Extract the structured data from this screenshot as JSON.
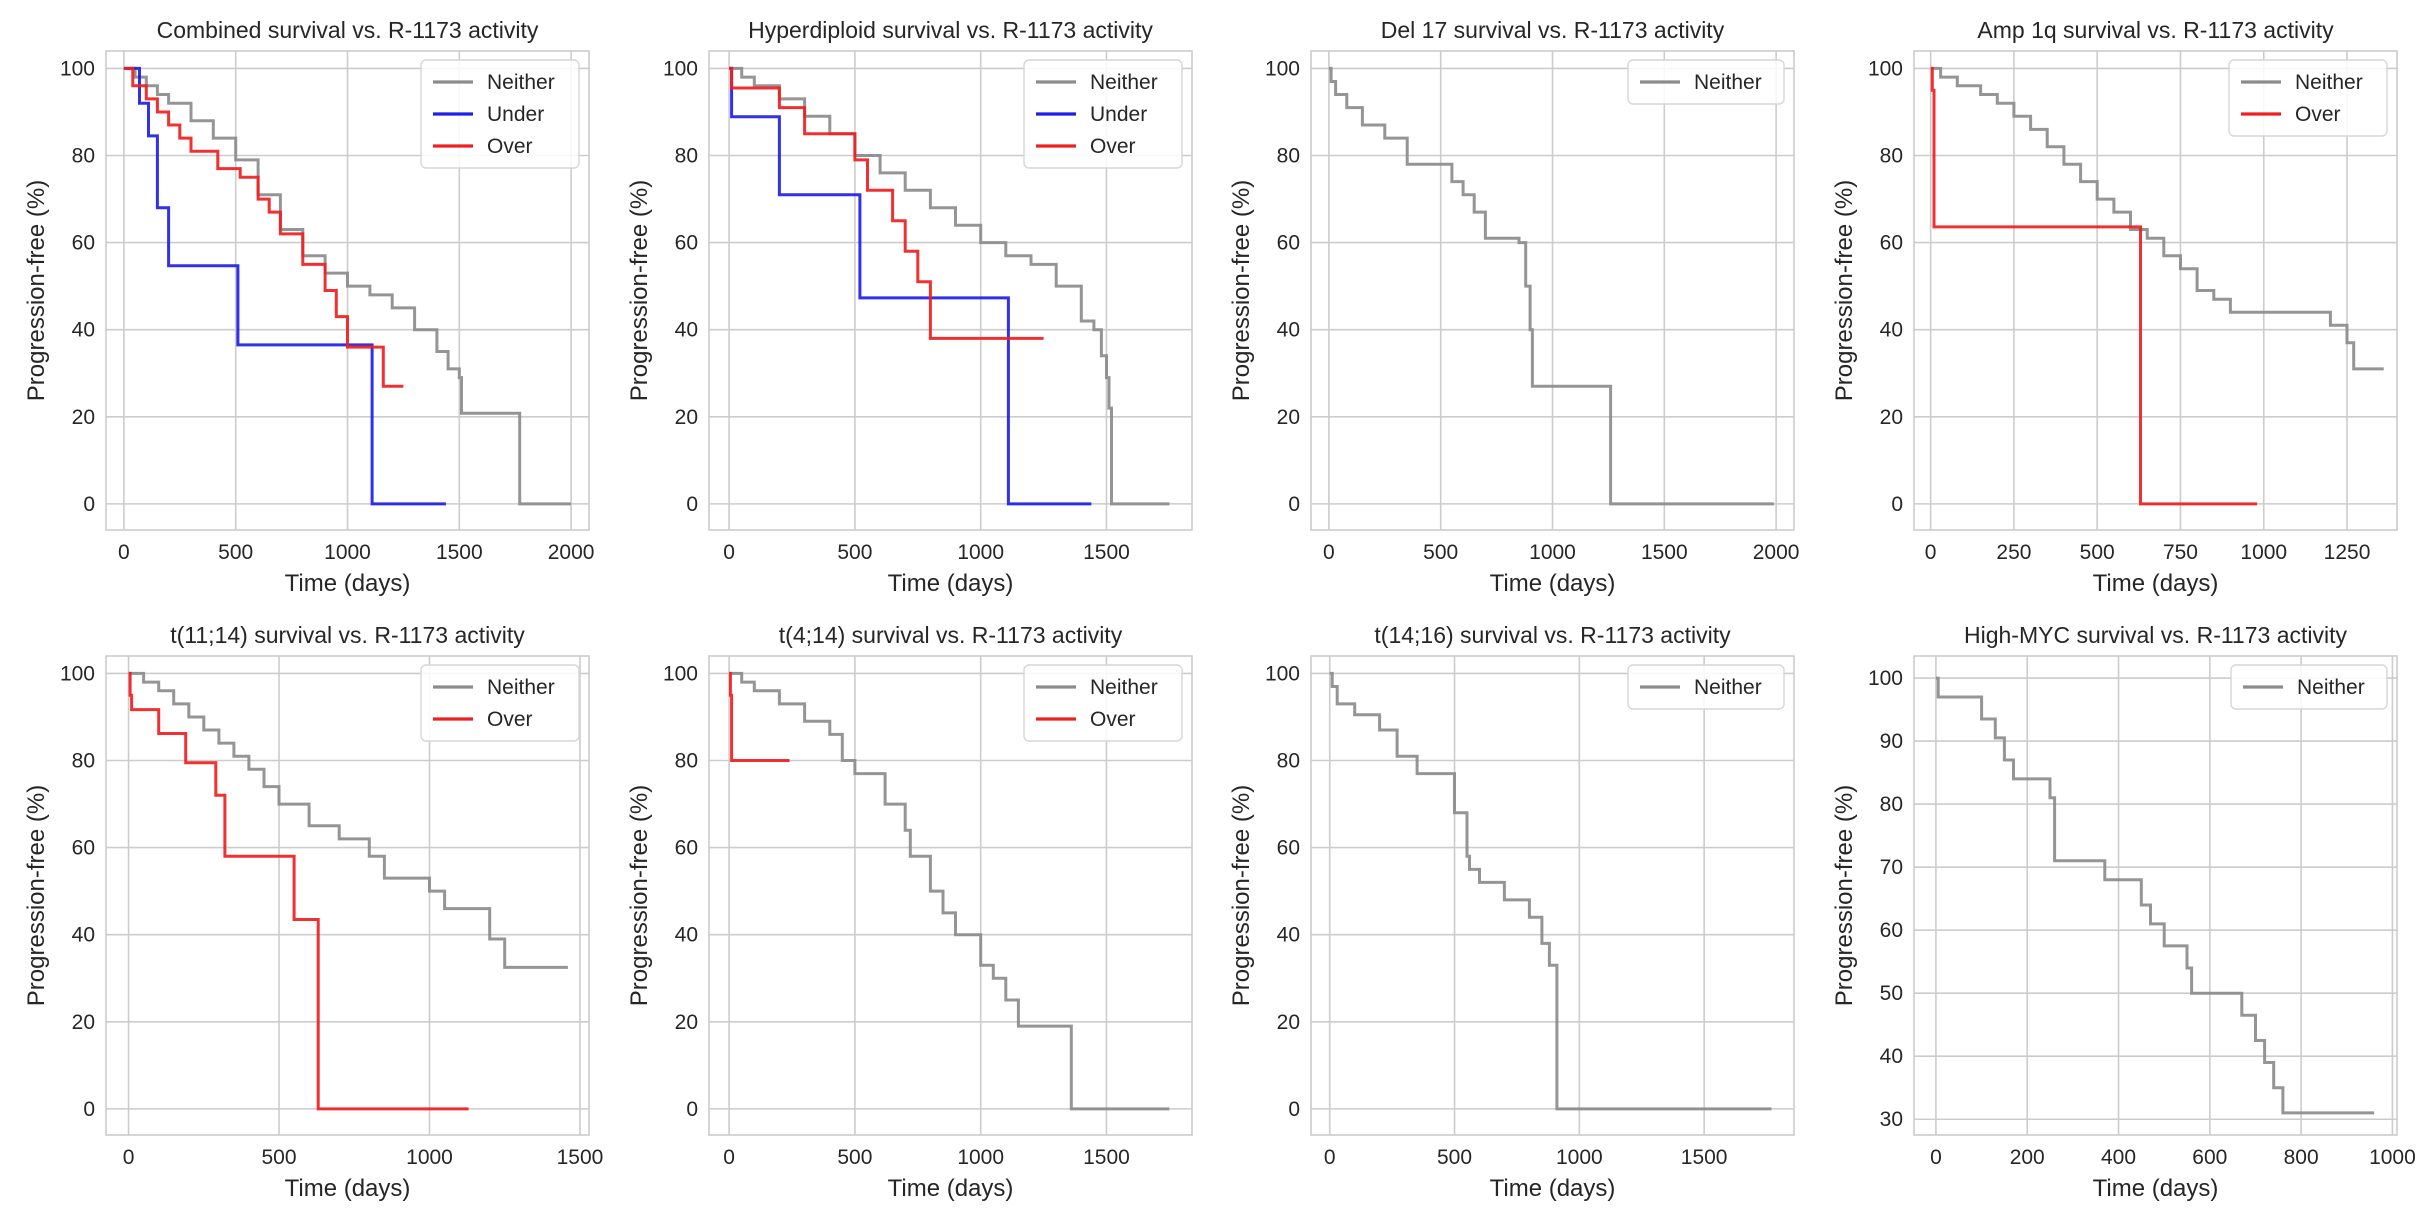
{
  "figure": {
    "type": "kaplan-meier-grid",
    "series_colors": {
      "Neither": "#8c8c8c",
      "Under": "#1f1fe6",
      "Over": "#f02020"
    }
  },
  "chart_data": [
    {
      "type": "line",
      "title": "Combined survival vs. R-1173 activity",
      "xlabel": "Time (days)",
      "ylabel": "Progression-free (%)",
      "xlim": [
        -80,
        2080
      ],
      "ylim": [
        -6,
        104
      ],
      "xticks": [
        0,
        500,
        1000,
        1500,
        2000
      ],
      "yticks": [
        0,
        20,
        40,
        60,
        80,
        100
      ],
      "legend_position": "top-right",
      "grid": true,
      "series": [
        {
          "name": "Neither",
          "x": [
            0,
            50,
            100,
            150,
            200,
            300,
            400,
            500,
            600,
            700,
            800,
            900,
            1000,
            1100,
            1200,
            1300,
            1400,
            1450,
            1500,
            1510,
            1760,
            1770,
            2000
          ],
          "y": [
            100,
            98,
            96,
            94,
            92,
            88,
            84,
            79,
            71,
            63,
            57,
            53,
            50,
            48,
            45,
            40,
            35,
            31,
            29,
            20.8,
            20.8,
            0,
            0
          ]
        },
        {
          "name": "Under",
          "x": [
            0,
            70,
            70,
            110,
            110,
            150,
            150,
            200,
            200,
            510,
            510,
            1110,
            1110,
            1440
          ],
          "y": [
            100,
            100,
            92,
            92,
            84.5,
            84.5,
            68,
            68,
            54.7,
            54.7,
            36.5,
            36.5,
            0,
            0
          ]
        },
        {
          "name": "Over",
          "x": [
            0,
            40,
            100,
            150,
            200,
            250,
            300,
            320,
            420,
            520,
            600,
            650,
            700,
            800,
            900,
            950,
            1000,
            1100,
            1150,
            1160,
            1250
          ],
          "y": [
            100,
            96,
            93,
            90,
            87,
            84,
            81,
            81,
            77,
            75,
            70,
            67,
            62,
            55,
            49,
            43,
            36,
            36,
            36,
            27,
            27
          ]
        }
      ]
    },
    {
      "type": "line",
      "title": "Hyperdiploid survival vs. R-1173 activity",
      "xlabel": "Time (days)",
      "ylabel": "Progression-free (%)",
      "xlim": [
        -80,
        1840
      ],
      "ylim": [
        -6,
        104
      ],
      "xticks": [
        0,
        500,
        1000,
        1500
      ],
      "yticks": [
        0,
        20,
        40,
        60,
        80,
        100
      ],
      "legend_position": "top-right",
      "grid": true,
      "series": [
        {
          "name": "Neither",
          "x": [
            0,
            50,
            100,
            200,
            300,
            400,
            500,
            600,
            700,
            800,
            900,
            1000,
            1100,
            1200,
            1300,
            1400,
            1450,
            1480,
            1500,
            1510,
            1520,
            1750
          ],
          "y": [
            100,
            98,
            96,
            93,
            89,
            85,
            80,
            76,
            72,
            68,
            64,
            60,
            57,
            55,
            50,
            42,
            40,
            34,
            29,
            22,
            0,
            0
          ]
        },
        {
          "name": "Under",
          "x": [
            0,
            10,
            10,
            200,
            200,
            520,
            520,
            1110,
            1110,
            1440
          ],
          "y": [
            100,
            100,
            88.9,
            88.9,
            71,
            71,
            47.3,
            47.3,
            0,
            0
          ]
        },
        {
          "name": "Over",
          "x": [
            0,
            10,
            150,
            200,
            300,
            500,
            550,
            650,
            700,
            750,
            800,
            1000,
            1250
          ],
          "y": [
            100,
            95.5,
            95.5,
            91,
            85,
            79,
            72,
            65,
            58,
            51,
            38,
            38,
            38
          ]
        }
      ]
    },
    {
      "type": "line",
      "title": "Del 17 survival vs. R-1173 activity",
      "xlabel": "Time (days)",
      "ylabel": "Progression-free (%)",
      "xlim": [
        -80,
        2080
      ],
      "ylim": [
        -6,
        104
      ],
      "xticks": [
        0,
        500,
        1000,
        1500,
        2000
      ],
      "yticks": [
        0,
        20,
        40,
        60,
        80,
        100
      ],
      "legend_position": "top-right",
      "grid": true,
      "series": [
        {
          "name": "Neither",
          "x": [
            0,
            10,
            30,
            80,
            150,
            250,
            350,
            550,
            600,
            650,
            700,
            850,
            880,
            900,
            910,
            920,
            1250,
            1260,
            1990
          ],
          "y": [
            100,
            97,
            94,
            91,
            87,
            84,
            78,
            74,
            71,
            67,
            61,
            60,
            50,
            40,
            27,
            27,
            27,
            0,
            0
          ]
        }
      ]
    },
    {
      "type": "line",
      "title": "Amp 1q survival vs. R-1173 activity",
      "xlabel": "Time (days)",
      "ylabel": "Progression-free (%)",
      "xlim": [
        -50,
        1400
      ],
      "ylim": [
        -6,
        104
      ],
      "xticks": [
        0,
        250,
        500,
        750,
        1000,
        1250
      ],
      "yticks": [
        0,
        20,
        40,
        60,
        80,
        100
      ],
      "legend_position": "top-right",
      "grid": true,
      "series": [
        {
          "name": "Neither",
          "x": [
            0,
            30,
            80,
            150,
            200,
            250,
            300,
            350,
            400,
            450,
            500,
            550,
            600,
            650,
            700,
            750,
            800,
            850,
            900,
            1000,
            1100,
            1200,
            1250,
            1270,
            1360
          ],
          "y": [
            100,
            98,
            96,
            94,
            92,
            89,
            86,
            82,
            78,
            74,
            70,
            67,
            63,
            61,
            57,
            54,
            49,
            47,
            44,
            44,
            44,
            41,
            37,
            31,
            31
          ]
        },
        {
          "name": "Over",
          "x": [
            0,
            5,
            10,
            10,
            630,
            630,
            980
          ],
          "y": [
            100,
            95,
            90,
            63.6,
            63.6,
            0,
            0
          ]
        }
      ]
    },
    {
      "type": "line",
      "title": "t(11;14) survival vs. R-1173 activity",
      "xlabel": "Time (days)",
      "ylabel": "Progression-free (%)",
      "xlim": [
        -75,
        1530
      ],
      "ylim": [
        -6,
        104
      ],
      "xticks": [
        0,
        500,
        1000,
        1500
      ],
      "yticks": [
        0,
        20,
        40,
        60,
        80,
        100
      ],
      "legend_position": "top-right",
      "grid": true,
      "series": [
        {
          "name": "Neither",
          "x": [
            0,
            50,
            100,
            150,
            200,
            250,
            300,
            350,
            400,
            450,
            500,
            600,
            700,
            800,
            850,
            1000,
            1050,
            1200,
            1250,
            1460
          ],
          "y": [
            100,
            98,
            96,
            93,
            90,
            87,
            84,
            81,
            78,
            74,
            70,
            65,
            62,
            58,
            53,
            50,
            46,
            39,
            32.5,
            32.5
          ]
        },
        {
          "name": "Over",
          "x": [
            0,
            5,
            10,
            100,
            190,
            290,
            320,
            320,
            550,
            550,
            630,
            630,
            1130
          ],
          "y": [
            100,
            95,
            91.7,
            86.2,
            79.5,
            72,
            58,
            58,
            58,
            43.5,
            43.5,
            0,
            0
          ]
        }
      ]
    },
    {
      "type": "line",
      "title": "t(4;14) survival vs. R-1173 activity",
      "xlabel": "Time (days)",
      "ylabel": "Progression-free (%)",
      "xlim": [
        -80,
        1840
      ],
      "ylim": [
        -6,
        104
      ],
      "xticks": [
        0,
        500,
        1000,
        1500
      ],
      "yticks": [
        0,
        20,
        40,
        60,
        80,
        100
      ],
      "legend_position": "top-right",
      "grid": true,
      "series": [
        {
          "name": "Neither",
          "x": [
            0,
            50,
            100,
            200,
            300,
            400,
            450,
            500,
            600,
            620,
            700,
            720,
            800,
            850,
            900,
            1000,
            1050,
            1100,
            1150,
            1350,
            1360,
            1750
          ],
          "y": [
            100,
            98,
            96,
            93,
            89,
            86,
            80,
            77,
            77,
            70,
            64,
            58,
            50,
            45,
            40,
            33,
            30,
            25,
            19,
            19,
            0,
            0
          ]
        },
        {
          "name": "Over",
          "x": [
            0,
            5,
            10,
            10,
            240
          ],
          "y": [
            100,
            95,
            90,
            80,
            80
          ]
        }
      ]
    },
    {
      "type": "line",
      "title": "t(14;16) survival vs. R-1173 activity",
      "xlabel": "Time (days)",
      "ylabel": "Progression-free (%)",
      "xlim": [
        -75,
        1860
      ],
      "ylim": [
        -6,
        104
      ],
      "xticks": [
        0,
        500,
        1000,
        1500
      ],
      "yticks": [
        0,
        20,
        40,
        60,
        80,
        100
      ],
      "legend_position": "top-right",
      "grid": true,
      "series": [
        {
          "name": "Neither",
          "x": [
            0,
            10,
            30,
            100,
            200,
            270,
            350,
            500,
            550,
            560,
            600,
            700,
            800,
            850,
            880,
            900,
            910,
            1770
          ],
          "y": [
            100,
            97,
            93,
            90.5,
            87,
            81,
            77,
            68,
            58,
            55,
            52,
            48,
            44,
            38,
            33,
            33,
            0,
            0
          ]
        }
      ]
    },
    {
      "type": "line",
      "title": "High-MYC survival vs. R-1173 activity",
      "xlabel": "Time (days)",
      "ylabel": "Progression-free (%)",
      "xlim": [
        -48,
        1010
      ],
      "ylim": [
        27.5,
        103.5
      ],
      "xticks": [
        0,
        200,
        400,
        600,
        800,
        1000
      ],
      "yticks": [
        30,
        40,
        50,
        60,
        70,
        80,
        90,
        100
      ],
      "legend_position": "top-right",
      "grid": true,
      "series": [
        {
          "name": "Neither",
          "x": [
            0,
            5,
            10,
            100,
            130,
            150,
            170,
            250,
            260,
            370,
            450,
            470,
            500,
            550,
            560,
            670,
            700,
            720,
            740,
            760,
            960
          ],
          "y": [
            100,
            97,
            97,
            93.5,
            90.5,
            87,
            84,
            81,
            71,
            68,
            64,
            61,
            57.5,
            54,
            50,
            46.5,
            42.5,
            39,
            35,
            31,
            31
          ]
        }
      ]
    }
  ]
}
